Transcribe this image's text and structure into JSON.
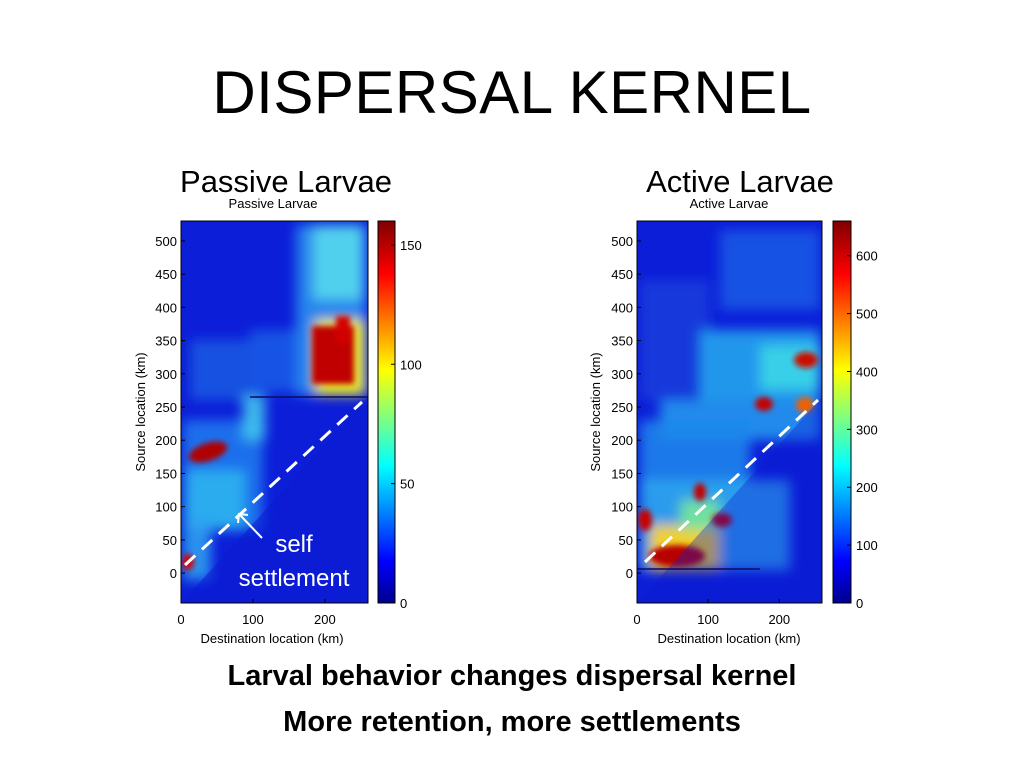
{
  "slide": {
    "title": "DISPERSAL KERNEL",
    "left_heading": "Passive Larvae",
    "right_heading": "Active Larvae",
    "takeaways": [
      "Larval behavior changes dispersal kernel",
      "More retention, more settlements"
    ],
    "annotation": [
      "self",
      "settlement"
    ]
  },
  "chart_data": [
    {
      "type": "heatmap",
      "title": "Passive Larvae",
      "xlabel": "Destination location (km)",
      "ylabel": "Source location (km)",
      "xlim": [
        0,
        260
      ],
      "ylim": [
        -45,
        530
      ],
      "xticks": [
        0,
        100,
        200
      ],
      "yticks": [
        0,
        50,
        100,
        150,
        200,
        250,
        300,
        350,
        400,
        450,
        500
      ],
      "colorbar": {
        "min": 0,
        "max": 160,
        "ticks": [
          0,
          50,
          100,
          150
        ]
      },
      "colormap": "jet",
      "diagonal": "self settlement (dashed white line, source = destination)",
      "hotspots": [
        {
          "x": 210,
          "y": 300,
          "value": 140
        },
        {
          "x": 210,
          "y": 340,
          "value": 120
        },
        {
          "x": 40,
          "y": 180,
          "value": 150
        },
        {
          "x": 5,
          "y": 15,
          "value": 130
        },
        {
          "x": 200,
          "y": 480,
          "value": 80
        },
        {
          "x": 60,
          "y": 130,
          "value": 70
        }
      ]
    },
    {
      "type": "heatmap",
      "title": "Active Larvae",
      "xlabel": "Destination location (km)",
      "ylabel": "Source location (km)",
      "xlim": [
        0,
        260
      ],
      "ylim": [
        -45,
        530
      ],
      "xticks": [
        0,
        100,
        200
      ],
      "yticks": [
        0,
        50,
        100,
        150,
        200,
        250,
        300,
        350,
        400,
        450,
        500
      ],
      "colorbar": {
        "min": 0,
        "max": 660,
        "ticks": [
          0,
          100,
          200,
          300,
          400,
          500,
          600
        ]
      },
      "colormap": "jet",
      "diagonal": "self settlement (dashed white line, source = destination)",
      "hotspots": [
        {
          "x": 55,
          "y": 15,
          "value": 650
        },
        {
          "x": 95,
          "y": 115,
          "value": 600
        },
        {
          "x": 120,
          "y": 75,
          "value": 580
        },
        {
          "x": 10,
          "y": 80,
          "value": 560
        },
        {
          "x": 180,
          "y": 245,
          "value": 600
        },
        {
          "x": 240,
          "y": 300,
          "value": 620
        },
        {
          "x": 240,
          "y": 250,
          "value": 500
        }
      ]
    }
  ]
}
